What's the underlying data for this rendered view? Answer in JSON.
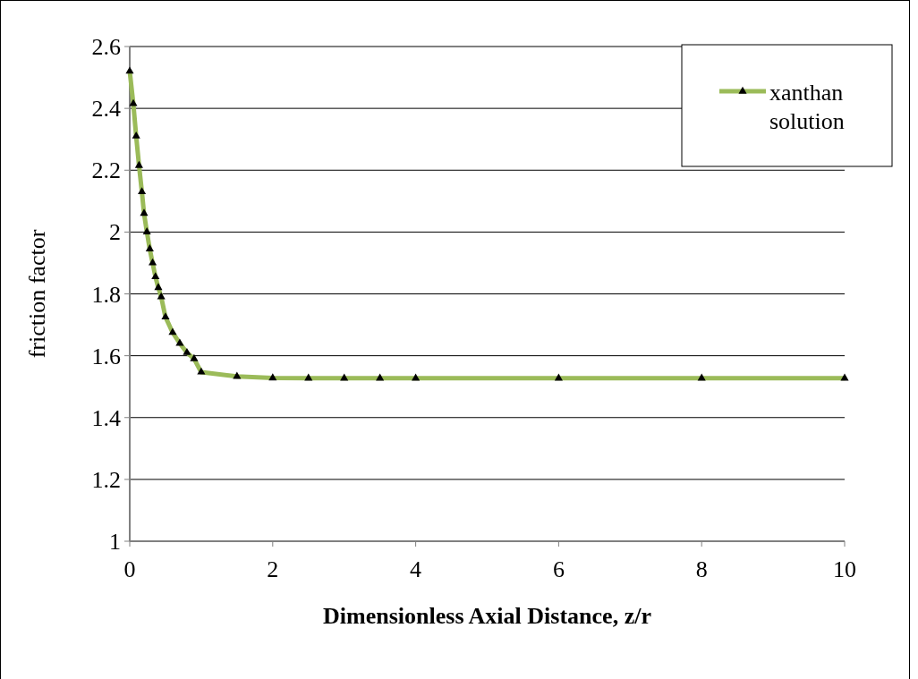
{
  "chart_data": {
    "type": "line",
    "xlabel": "Dimensionless Axial Distance, z/r",
    "ylabel": "friction factor",
    "xlim": [
      0,
      10
    ],
    "xticks": [
      0,
      2,
      4,
      6,
      8,
      10
    ],
    "ylim": [
      1,
      2.6
    ],
    "yticks": [
      1,
      1.2,
      1.4,
      1.6,
      1.8,
      2,
      2.2,
      2.4,
      2.6
    ],
    "grid": "y",
    "legend": "top right",
    "marker": "triangle",
    "line_style": "solid",
    "series": [
      {
        "name": "xanthan solution",
        "color": "#9bbb59",
        "x": [
          0,
          0.05,
          0.09,
          0.13,
          0.17,
          0.2,
          0.24,
          0.28,
          0.32,
          0.36,
          0.4,
          0.44,
          0.5,
          0.6,
          0.7,
          0.8,
          0.9,
          1,
          1.5,
          2,
          2.5,
          3,
          3.5,
          4,
          6,
          8,
          10
        ],
        "values": [
          2.52,
          2.415,
          2.31,
          2.215,
          2.13,
          2.06,
          2,
          1.945,
          1.9,
          1.855,
          1.82,
          1.79,
          1.725,
          1.675,
          1.64,
          1.61,
          1.59,
          1.547,
          1.533,
          1.528,
          1.527,
          1.527,
          1.527,
          1.527,
          1.527,
          1.527,
          1.527
        ]
      }
    ]
  }
}
